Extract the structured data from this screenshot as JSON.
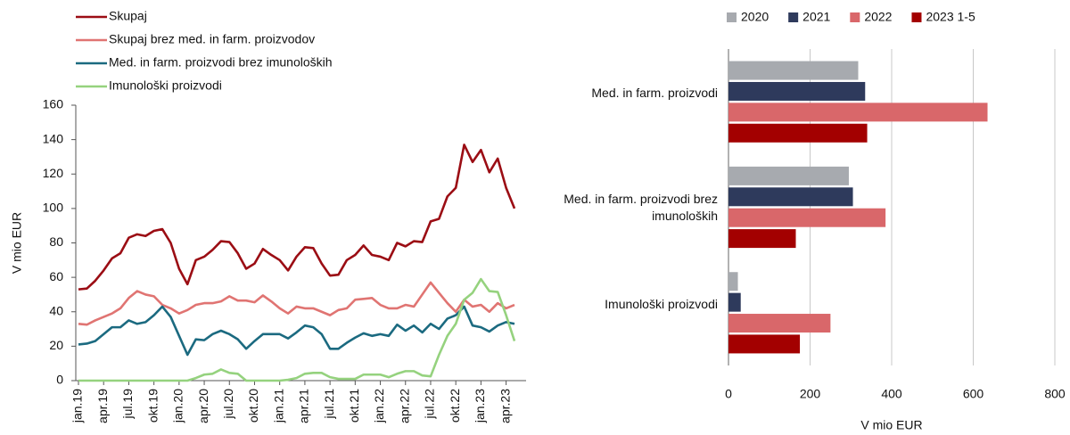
{
  "chart_data": [
    {
      "type": "line",
      "ylabel": "V mio EUR",
      "categories": [
        "jan.19",
        null,
        null,
        "apr.19",
        null,
        null,
        "jul.19",
        null,
        null,
        "okt.19",
        null,
        null,
        "jan.20",
        null,
        null,
        "apr.20",
        null,
        null,
        "jul.20",
        null,
        null,
        "okt.20",
        null,
        null,
        "jan.21",
        null,
        null,
        "apr.21",
        null,
        null,
        "jul.21",
        null,
        null,
        "okt.21",
        null,
        null,
        "jan.22",
        null,
        null,
        "apr.22",
        null,
        null,
        "jul.22",
        null,
        null,
        "okt.22",
        null,
        null,
        "jan.23",
        null,
        null,
        "apr.23",
        null
      ],
      "ylim": [
        0,
        160
      ],
      "yticks": [
        0,
        20,
        40,
        60,
        80,
        100,
        120,
        140,
        160
      ],
      "grid": false,
      "legend": "top-left",
      "series": [
        {
          "name": "Skupaj",
          "color": "#9b0d14",
          "values": [
            53,
            53.5,
            58,
            64,
            71,
            74,
            83,
            85,
            84,
            87,
            88,
            80,
            65,
            56,
            70,
            72,
            76,
            81,
            80.5,
            74,
            65,
            68,
            76.5,
            73,
            70,
            64,
            72,
            77.5,
            77,
            68,
            61,
            61.5,
            70,
            73,
            78.5,
            73,
            72,
            70,
            80,
            78,
            81,
            80.5,
            92.5,
            94,
            107,
            112,
            137,
            127,
            134,
            121,
            129,
            112,
            100
          ]
        },
        {
          "name": "Skupaj brez med. in farm. proizvodov",
          "color": "#e07472",
          "values": [
            33,
            32.5,
            35,
            37,
            39,
            42,
            48,
            52,
            50,
            49,
            44,
            42,
            39,
            41,
            44,
            45,
            45,
            46,
            49,
            46.5,
            46.5,
            45.5,
            49.5,
            46,
            42,
            39,
            43,
            42,
            42,
            40,
            38,
            41,
            42,
            47,
            47.5,
            48,
            44,
            42,
            42,
            44,
            43,
            50,
            57,
            51,
            45,
            40,
            47,
            43,
            44,
            40,
            45,
            42,
            44
          ]
        },
        {
          "name": "Med. in farm. proizvodi brez imunoloških",
          "color": "#1b6a80",
          "values": [
            21,
            21.5,
            23,
            27,
            31,
            31,
            35,
            33,
            34,
            38,
            43,
            37,
            26,
            15,
            24,
            23.5,
            27,
            29,
            27,
            24,
            18.5,
            23,
            27,
            27,
            27,
            24.5,
            28,
            32,
            31,
            27,
            18.5,
            18.5,
            22,
            25,
            27.5,
            26,
            27,
            26,
            32.5,
            29,
            32,
            28,
            33,
            30,
            36,
            38,
            43,
            32,
            31,
            28.5,
            32,
            34,
            33
          ]
        },
        {
          "name": "Imunološki proizvodi",
          "color": "#95d27e",
          "values": [
            0,
            0,
            0,
            0,
            0,
            0,
            0,
            0,
            0,
            0,
            0,
            0,
            0,
            0,
            1.5,
            3.5,
            4,
            6.5,
            4.5,
            4,
            0,
            0,
            0,
            0,
            0,
            0.5,
            1.5,
            4,
            4.5,
            4.5,
            2,
            1,
            1,
            1,
            3.5,
            3.5,
            3.5,
            2,
            4,
            5.5,
            5.5,
            3,
            2.5,
            15,
            26,
            33,
            47,
            51,
            59,
            52,
            51.5,
            38,
            23
          ]
        }
      ]
    },
    {
      "type": "hbar",
      "xlabel": "V mio EUR",
      "categories": [
        "Med. in farm. proizvodi",
        "Med. in farm. proizvodi brez imunoloških",
        "Imunološki proizvodi"
      ],
      "xlim": [
        0,
        800
      ],
      "xticks": [
        0,
        200,
        400,
        600,
        800
      ],
      "grid": true,
      "legend": "top",
      "series": [
        {
          "name": "2020",
          "color": "#a7aaaf",
          "values": [
            318,
            295,
            23
          ]
        },
        {
          "name": "2021",
          "color": "#2e3a5c",
          "values": [
            335,
            305,
            30
          ]
        },
        {
          "name": "2022",
          "color": "#d9676a",
          "values": [
            635,
            385,
            250
          ]
        },
        {
          "name": "2023 1-5",
          "color": "#a30000",
          "values": [
            340,
            165,
            175
          ]
        }
      ]
    }
  ]
}
